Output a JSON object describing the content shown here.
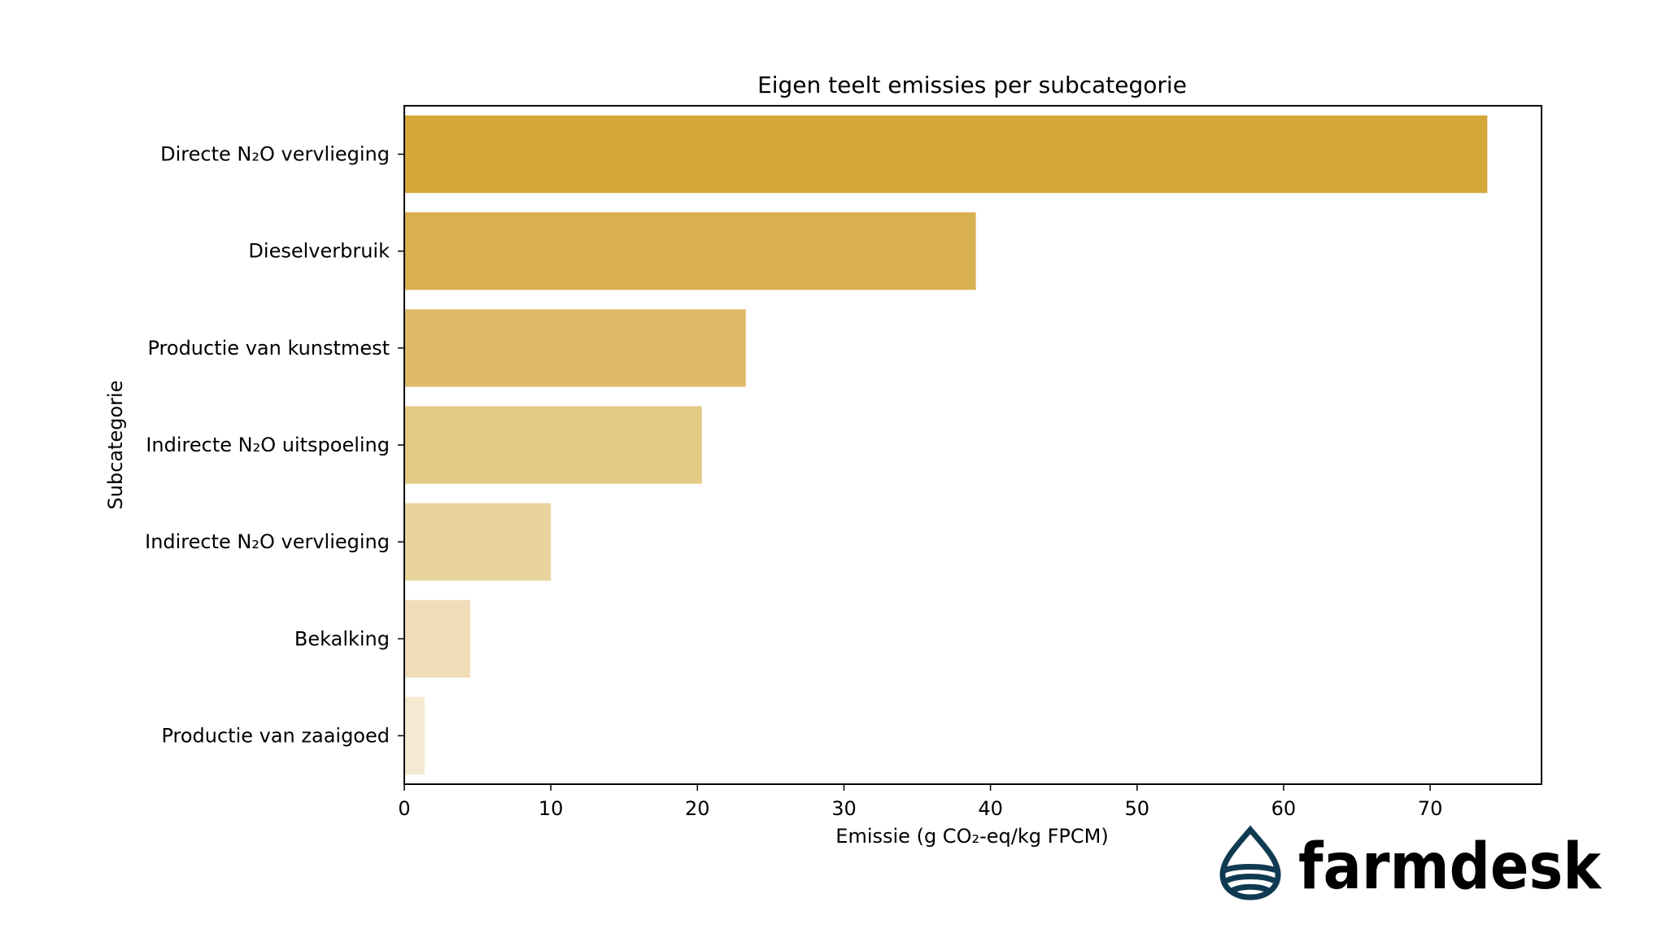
{
  "chart_data": {
    "type": "bar",
    "orientation": "horizontal",
    "title": "Eigen teelt emissies per subcategorie",
    "xlabel": "Emissie (g CO₂-eq/kg FPCM)",
    "ylabel": "Subcategorie",
    "categories": [
      "Directe N₂O vervlieging",
      "Dieselverbruik",
      "Productie van kunstmest",
      "Indirecte N₂O uitspoeling",
      "Indirecte N₂O vervlieging",
      "Bekalking",
      "Productie van zaaigoed"
    ],
    "values": [
      73.9,
      39.0,
      23.3,
      20.3,
      10.0,
      4.5,
      1.4
    ],
    "bar_colors": [
      "#d4a73a",
      "#d8b04f",
      "#deba69",
      "#e4c983",
      "#e9d49d",
      "#f0ddb7",
      "#f5e9d2"
    ],
    "xlim": [
      0,
      77.6
    ],
    "xticks": [
      0,
      10,
      20,
      30,
      40,
      50,
      60,
      70
    ],
    "grid": false,
    "legend": "none"
  },
  "logo": {
    "text": "farmdesk",
    "color": "#0f3a52"
  }
}
